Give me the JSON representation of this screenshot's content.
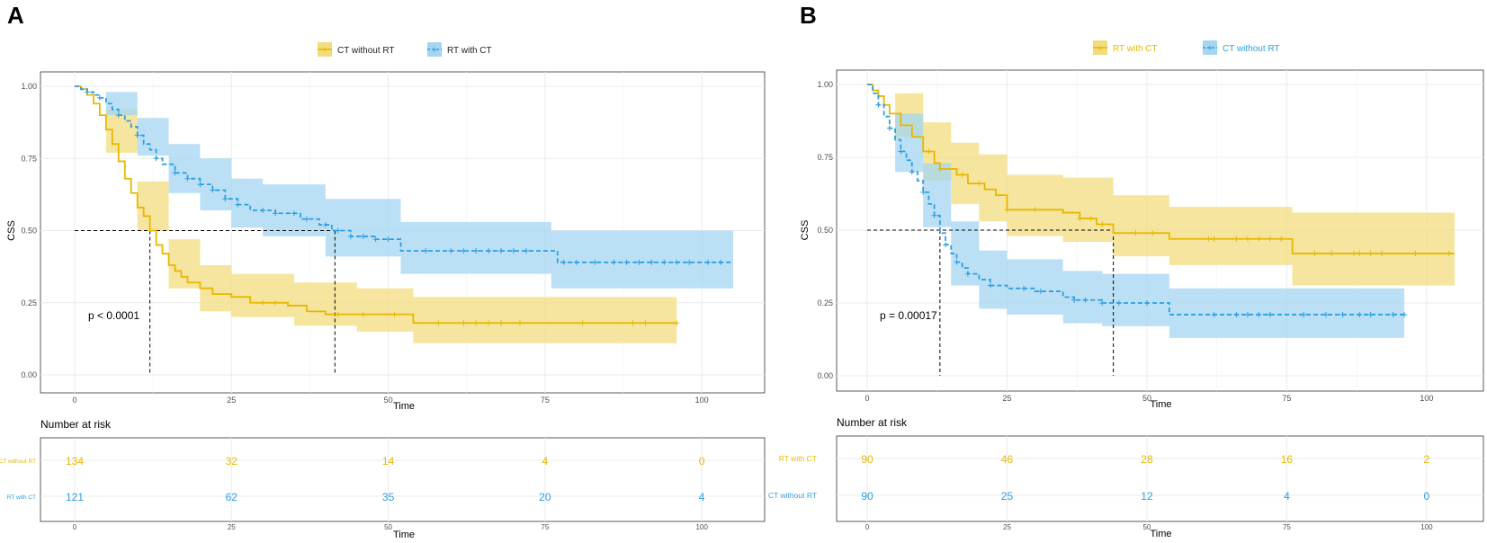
{
  "colors": {
    "gold": "#E7B800",
    "blue": "#2E9FDF",
    "gold_band": "#F1DC7E",
    "blue_band": "#A4D6F2",
    "grid": "#EBEBEB",
    "axis_text": "#4D4D4D"
  },
  "chart_data": [
    {
      "panel_label": "A",
      "type": "line",
      "subtype": "kaplan-meier",
      "xlabel": "Time",
      "ylabel": "CSS",
      "xlim": [
        0,
        105
      ],
      "ylim": [
        0,
        1
      ],
      "xticks": [
        "0",
        "25",
        "50",
        "75",
        "100"
      ],
      "yticks": [
        "0.00",
        "0.25",
        "0.50",
        "0.75",
        "1.00"
      ],
      "legend": [
        "CT without RT",
        "RT with CT"
      ],
      "pvalue": "p < 0.0001",
      "median_line_y": 0.5,
      "medians": [
        12,
        41.5
      ],
      "series": [
        {
          "name": "CT without RT",
          "color": "gold",
          "dash": false,
          "band_color": "gold_band",
          "steps": [
            [
              0,
              1
            ],
            [
              1,
              0.99
            ],
            [
              2,
              0.97
            ],
            [
              3,
              0.94
            ],
            [
              4,
              0.9
            ],
            [
              5,
              0.85
            ],
            [
              6,
              0.8
            ],
            [
              7,
              0.74
            ],
            [
              8,
              0.68
            ],
            [
              9,
              0.63
            ],
            [
              10,
              0.58
            ],
            [
              11,
              0.55
            ],
            [
              12,
              0.5
            ],
            [
              13,
              0.45
            ],
            [
              14,
              0.42
            ],
            [
              15,
              0.38
            ],
            [
              16,
              0.36
            ],
            [
              17,
              0.34
            ],
            [
              18,
              0.32
            ],
            [
              20,
              0.3
            ],
            [
              22,
              0.28
            ],
            [
              25,
              0.27
            ],
            [
              28,
              0.25
            ],
            [
              34,
              0.24
            ],
            [
              37,
              0.22
            ],
            [
              40,
              0.21
            ],
            [
              54,
              0.18
            ],
            [
              96,
              0.18
            ]
          ],
          "band": [
            [
              0,
              1,
              1
            ],
            [
              5,
              0.77,
              0.92
            ],
            [
              10,
              0.5,
              0.67
            ],
            [
              15,
              0.3,
              0.47
            ],
            [
              20,
              0.22,
              0.38
            ],
            [
              25,
              0.2,
              0.35
            ],
            [
              35,
              0.17,
              0.32
            ],
            [
              45,
              0.15,
              0.3
            ],
            [
              54,
              0.11,
              0.27
            ],
            [
              96,
              0.11,
              0.27
            ]
          ],
          "censor": [
            30,
            32,
            42,
            46,
            51,
            58,
            62,
            64,
            66,
            68,
            71,
            81,
            89,
            91,
            96
          ]
        },
        {
          "name": "RT with CT",
          "color": "blue",
          "dash": true,
          "band_color": "blue_band",
          "steps": [
            [
              0,
              1
            ],
            [
              1,
              0.99
            ],
            [
              2,
              0.98
            ],
            [
              3,
              0.97
            ],
            [
              4,
              0.96
            ],
            [
              5,
              0.94
            ],
            [
              6,
              0.92
            ],
            [
              7,
              0.9
            ],
            [
              8,
              0.88
            ],
            [
              9,
              0.86
            ],
            [
              10,
              0.83
            ],
            [
              11,
              0.8
            ],
            [
              12,
              0.78
            ],
            [
              13,
              0.75
            ],
            [
              14,
              0.73
            ],
            [
              16,
              0.7
            ],
            [
              18,
              0.68
            ],
            [
              20,
              0.66
            ],
            [
              22,
              0.64
            ],
            [
              24,
              0.61
            ],
            [
              26,
              0.59
            ],
            [
              28,
              0.57
            ],
            [
              32,
              0.56
            ],
            [
              36,
              0.54
            ],
            [
              39,
              0.52
            ],
            [
              41,
              0.5
            ],
            [
              44,
              0.48
            ],
            [
              48,
              0.47
            ],
            [
              52,
              0.43
            ],
            [
              61,
              0.43
            ],
            [
              77,
              0.39
            ],
            [
              105,
              0.39
            ]
          ],
          "band": [
            [
              0,
              1,
              1
            ],
            [
              5,
              0.9,
              0.98
            ],
            [
              10,
              0.76,
              0.89
            ],
            [
              15,
              0.63,
              0.8
            ],
            [
              20,
              0.57,
              0.75
            ],
            [
              25,
              0.51,
              0.68
            ],
            [
              30,
              0.48,
              0.66
            ],
            [
              40,
              0.41,
              0.61
            ],
            [
              52,
              0.35,
              0.53
            ],
            [
              76,
              0.3,
              0.5
            ],
            [
              105,
              0.3,
              0.5
            ]
          ],
          "censor": [
            2,
            4,
            7,
            10,
            13,
            16,
            18,
            20,
            22,
            24,
            26,
            30,
            32,
            35,
            37,
            40,
            42,
            44,
            46,
            48,
            50,
            56,
            60,
            62,
            64,
            66,
            68,
            70,
            72,
            78,
            80,
            83,
            86,
            88,
            90,
            92,
            94,
            96,
            98,
            101,
            103
          ]
        }
      ],
      "risk_table": {
        "title": "Number at risk",
        "xlabel": "Time",
        "rows": [
          {
            "label": "CT without RT",
            "color": "gold",
            "values": [
              "134",
              "32",
              "14",
              "4",
              "0"
            ]
          },
          {
            "label": "RT with CT",
            "color": "blue",
            "values": [
              "121",
              "62",
              "35",
              "20",
              "4"
            ]
          }
        ]
      }
    },
    {
      "panel_label": "B",
      "type": "line",
      "subtype": "kaplan-meier",
      "xlabel": "Time",
      "ylabel": "CSS",
      "xlim": [
        0,
        105
      ],
      "ylim": [
        0,
        1
      ],
      "xticks": [
        "0",
        "25",
        "50",
        "75",
        "100"
      ],
      "yticks": [
        "0.00",
        "0.25",
        "0.50",
        "0.75",
        "1.00"
      ],
      "legend": [
        "RT with CT",
        "CT without RT"
      ],
      "pvalue": "p = 0.00017",
      "median_line_y": 0.5,
      "medians": [
        13,
        44
      ],
      "series": [
        {
          "name": "RT with CT",
          "color": "gold",
          "dash": false,
          "band_color": "gold_band",
          "steps": [
            [
              0,
              1
            ],
            [
              1,
              0.98
            ],
            [
              2,
              0.96
            ],
            [
              3,
              0.93
            ],
            [
              4,
              0.9
            ],
            [
              6,
              0.86
            ],
            [
              8,
              0.82
            ],
            [
              10,
              0.77
            ],
            [
              12,
              0.73
            ],
            [
              13,
              0.71
            ],
            [
              16,
              0.69
            ],
            [
              18,
              0.66
            ],
            [
              21,
              0.64
            ],
            [
              23,
              0.62
            ],
            [
              25,
              0.57
            ],
            [
              35,
              0.56
            ],
            [
              38,
              0.54
            ],
            [
              41,
              0.52
            ],
            [
              44,
              0.49
            ],
            [
              54,
              0.47
            ],
            [
              76,
              0.42
            ],
            [
              105,
              0.42
            ]
          ],
          "band": [
            [
              0,
              1,
              1
            ],
            [
              5,
              0.82,
              0.97
            ],
            [
              10,
              0.67,
              0.87
            ],
            [
              15,
              0.59,
              0.8
            ],
            [
              20,
              0.53,
              0.76
            ],
            [
              25,
              0.48,
              0.69
            ],
            [
              35,
              0.46,
              0.68
            ],
            [
              44,
              0.41,
              0.62
            ],
            [
              54,
              0.38,
              0.58
            ],
            [
              76,
              0.31,
              0.56
            ],
            [
              105,
              0.31,
              0.56
            ]
          ],
          "censor": [
            11,
            13,
            17,
            20,
            25,
            30,
            38,
            40,
            42,
            48,
            51,
            61,
            62,
            66,
            68,
            70,
            72,
            74,
            80,
            83,
            87,
            88,
            90,
            92,
            98,
            104
          ]
        },
        {
          "name": "CT without RT",
          "color": "blue",
          "dash": true,
          "band_color": "blue_band",
          "steps": [
            [
              0,
              1
            ],
            [
              1,
              0.97
            ],
            [
              2,
              0.93
            ],
            [
              3,
              0.89
            ],
            [
              4,
              0.85
            ],
            [
              5,
              0.81
            ],
            [
              6,
              0.77
            ],
            [
              7,
              0.74
            ],
            [
              8,
              0.7
            ],
            [
              9,
              0.67
            ],
            [
              10,
              0.63
            ],
            [
              11,
              0.59
            ],
            [
              12,
              0.55
            ],
            [
              13,
              0.49
            ],
            [
              14,
              0.45
            ],
            [
              15,
              0.42
            ],
            [
              16,
              0.39
            ],
            [
              17,
              0.37
            ],
            [
              18,
              0.35
            ],
            [
              20,
              0.33
            ],
            [
              22,
              0.31
            ],
            [
              25,
              0.3
            ],
            [
              30,
              0.29
            ],
            [
              35,
              0.27
            ],
            [
              37,
              0.26
            ],
            [
              42,
              0.25
            ],
            [
              54,
              0.21
            ],
            [
              96,
              0.21
            ]
          ],
          "band": [
            [
              0,
              1,
              1
            ],
            [
              5,
              0.7,
              0.9
            ],
            [
              10,
              0.51,
              0.73
            ],
            [
              15,
              0.31,
              0.53
            ],
            [
              20,
              0.23,
              0.43
            ],
            [
              25,
              0.21,
              0.4
            ],
            [
              35,
              0.18,
              0.36
            ],
            [
              42,
              0.17,
              0.35
            ],
            [
              54,
              0.13,
              0.3
            ],
            [
              96,
              0.13,
              0.3
            ]
          ],
          "censor": [
            2,
            4,
            6,
            8,
            10,
            12,
            14,
            16,
            18,
            22,
            28,
            31,
            37,
            39,
            42,
            45,
            50,
            62,
            66,
            68,
            70,
            72,
            78,
            82,
            85,
            88,
            90,
            94,
            96
          ]
        }
      ],
      "risk_table": {
        "title": "Number at risk",
        "xlabel": "Time",
        "rows": [
          {
            "label": "RT with CT",
            "color": "gold",
            "values": [
              "90",
              "46",
              "28",
              "16",
              "2"
            ]
          },
          {
            "label": "CT without RT",
            "color": "blue",
            "values": [
              "90",
              "25",
              "12",
              "4",
              "0"
            ]
          }
        ]
      }
    }
  ]
}
